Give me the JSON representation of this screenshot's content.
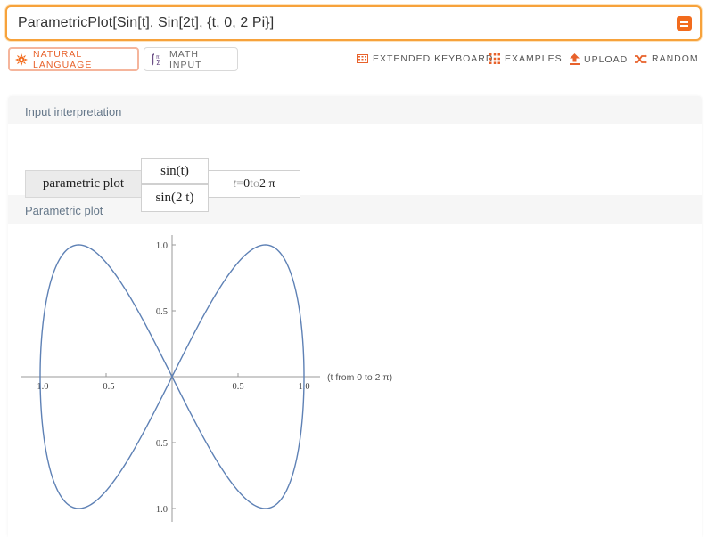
{
  "search": {
    "query": "ParametricPlot[Sin[t], Sin[2t], {t, 0, 2 Pi}]",
    "submit_icon": "equals-icon"
  },
  "modes": {
    "natural": "NATURAL LANGUAGE",
    "math": "MATH INPUT"
  },
  "toolbar": {
    "keyboard": "EXTENDED KEYBOARD",
    "examples": "EXAMPLES",
    "upload": "UPLOAD",
    "random": "RANDOM"
  },
  "colors": {
    "accent": "#f26b1d",
    "curve": "#5e81b5",
    "pod_title": "#66788a"
  },
  "pods": {
    "interpretation": {
      "title": "Input interpretation",
      "head": "parametric plot",
      "x_expr": "sin(t)",
      "y_expr": "sin(2 t)",
      "range_var": "t",
      "range_eq": " = ",
      "range_from": "0",
      "range_to_word": " to ",
      "range_to": "2 π"
    },
    "plot": {
      "title": "Parametric plot",
      "annotation": "(t from 0 to 2 π)"
    }
  },
  "chart_data": {
    "type": "line",
    "title": "",
    "xlabel": "",
    "ylabel": "",
    "parametric": {
      "x": "sin(t)",
      "y": "sin(2t)",
      "t_range": [
        0,
        6.283185307
      ]
    },
    "xlim": [
      -1.0,
      1.0
    ],
    "ylim": [
      -1.0,
      1.0
    ],
    "x_ticks": [
      -1.0,
      -0.5,
      0.5,
      1.0
    ],
    "x_tick_labels": [
      "−1.0",
      "−0.5",
      "0.5",
      "1.0"
    ],
    "y_ticks": [
      1.0,
      0.5,
      -0.5,
      -1.0
    ],
    "y_tick_labels": [
      "1.0",
      "0.5",
      "−0.5",
      "−1.0"
    ],
    "series": [
      {
        "points": [
          [
            0,
            0
          ],
          [
            0.383,
            0.707
          ],
          [
            0.707,
            1.0
          ],
          [
            0.924,
            0.707
          ],
          [
            1.0,
            0
          ],
          [
            0.924,
            -0.707
          ],
          [
            0.707,
            -1.0
          ],
          [
            0.383,
            -0.707
          ],
          [
            0,
            0
          ],
          [
            -0.383,
            0.707
          ],
          [
            -0.707,
            1.0
          ],
          [
            -0.924,
            0.707
          ],
          [
            -1.0,
            0
          ],
          [
            -0.924,
            -0.707
          ],
          [
            -0.707,
            -1.0
          ],
          [
            -0.383,
            -0.707
          ],
          [
            0,
            0
          ]
        ]
      }
    ],
    "grid": false
  }
}
